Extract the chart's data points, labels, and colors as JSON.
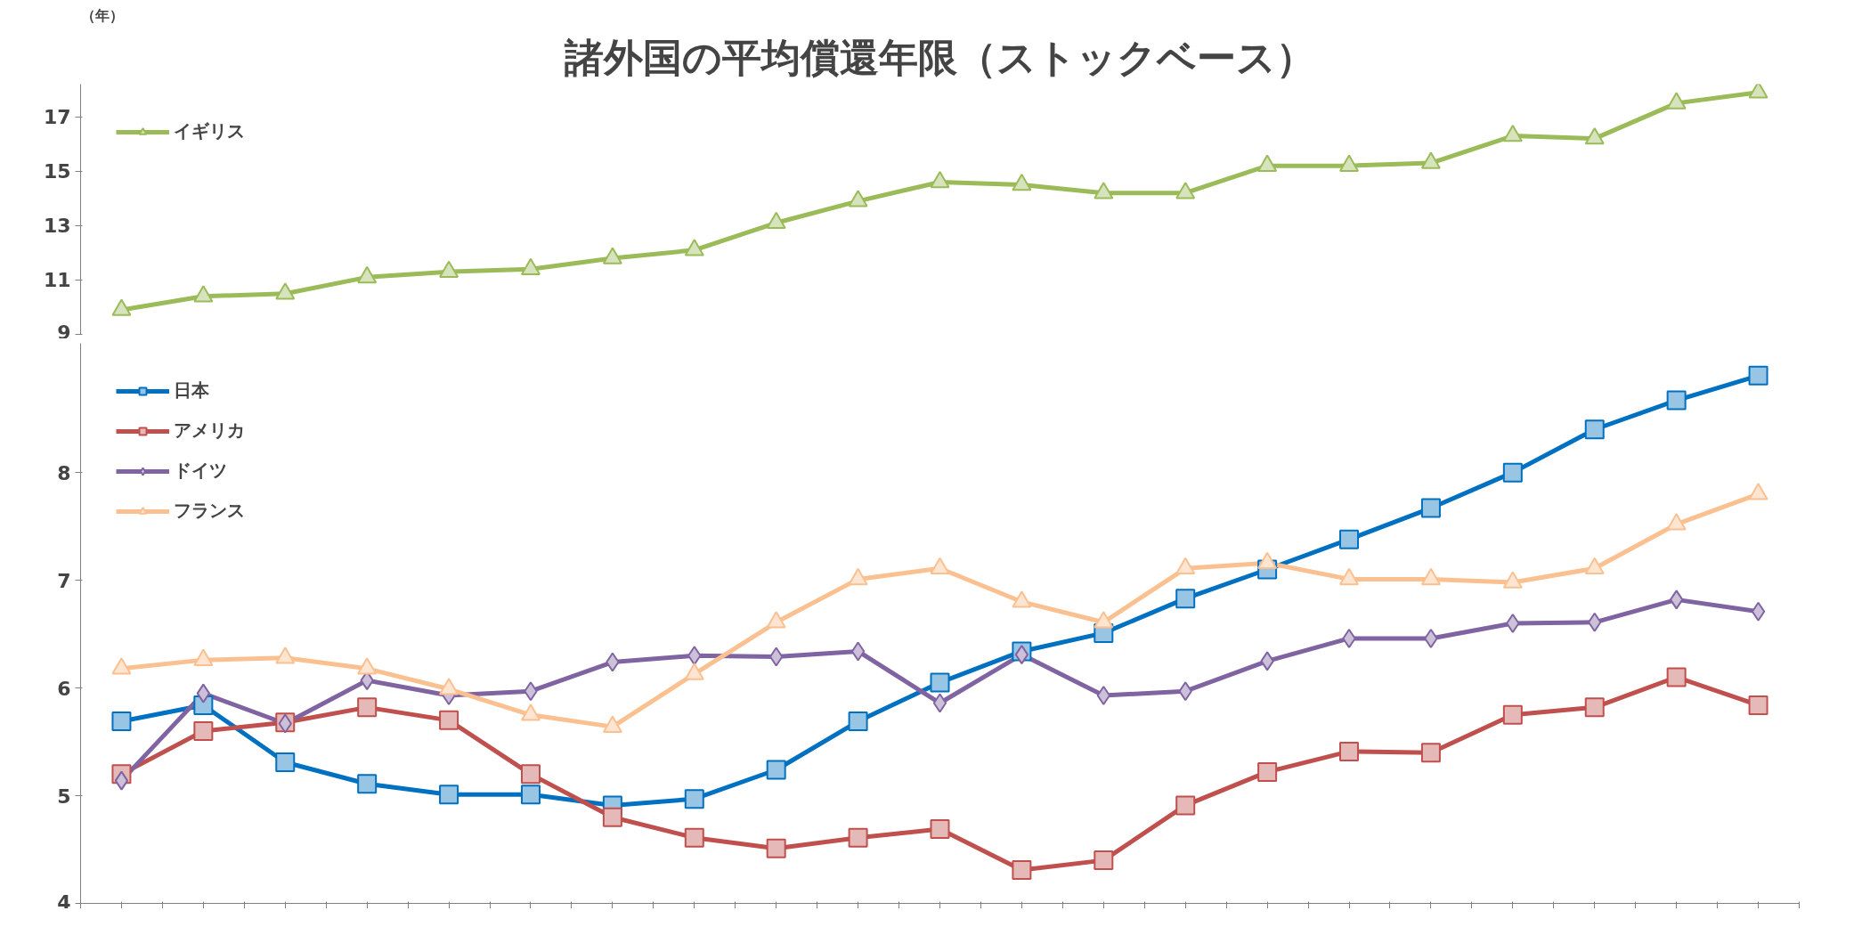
{
  "chart_data": [
    {
      "type": "line",
      "title": "諸外国の平均償還年限（ストックベース）",
      "ylabel": "（年）",
      "categories": [
        null,
        null,
        null,
        null,
        null,
        null,
        null,
        null,
        null,
        null,
        null,
        null,
        null,
        null,
        null,
        null,
        null,
        null,
        null,
        null,
        null
      ],
      "ylim": [
        9,
        18.2
      ],
      "yticks": [
        9,
        11,
        13,
        15,
        17
      ],
      "tick_labels": "y",
      "grid": false,
      "legend": "top left",
      "line_style": "solid",
      "series": [
        {
          "name": "イギリス",
          "color": "#9bbb59",
          "marker": "triangle",
          "values": [
            9.9,
            10.4,
            10.5,
            11.1,
            11.3,
            11.4,
            11.8,
            12.1,
            13.1,
            13.9,
            14.6,
            14.5,
            14.2,
            14.2,
            15.2,
            15.2,
            15.3,
            16.3,
            16.2,
            17.5,
            17.9
          ]
        }
      ]
    },
    {
      "type": "line",
      "categories": [
        null,
        null,
        null,
        null,
        null,
        null,
        null,
        null,
        null,
        null,
        null,
        null,
        null,
        null,
        null,
        null,
        null,
        null,
        null,
        null,
        null
      ],
      "ylim": [
        4,
        9.2
      ],
      "yticks": [
        4,
        5,
        6,
        7,
        8
      ],
      "tick_labels": "y",
      "grid": false,
      "legend": "top left",
      "line_style": "solid",
      "series": [
        {
          "name": "日本",
          "color": "#0070c0",
          "marker": "square",
          "values": [
            5.69,
            5.84,
            5.31,
            5.11,
            5.01,
            5.01,
            4.91,
            4.97,
            5.24,
            5.69,
            6.05,
            6.34,
            6.51,
            6.83,
            7.1,
            7.38,
            7.67,
            8.0,
            8.4,
            8.67,
            8.9
          ]
        },
        {
          "name": "アメリカ",
          "color": "#c0504d",
          "marker": "square",
          "values": [
            5.2,
            5.6,
            5.68,
            5.82,
            5.7,
            5.2,
            4.8,
            4.61,
            4.51,
            4.61,
            4.69,
            4.31,
            4.4,
            4.91,
            5.22,
            5.41,
            5.4,
            5.75,
            5.82,
            6.1,
            5.84
          ]
        },
        {
          "name": "ドイツ",
          "color": "#8064a2",
          "marker": "diamond",
          "values": [
            5.14,
            5.95,
            5.67,
            6.07,
            5.93,
            5.97,
            6.24,
            6.3,
            6.29,
            6.34,
            5.86,
            6.31,
            5.93,
            5.97,
            6.25,
            6.46,
            6.46,
            6.6,
            6.61,
            6.82,
            6.71
          ]
        },
        {
          "name": "フランス",
          "color": "#fac090",
          "marker": "triangle",
          "values": [
            6.18,
            6.26,
            6.28,
            6.18,
            5.99,
            5.75,
            5.64,
            6.13,
            6.61,
            7.01,
            7.11,
            6.8,
            6.61,
            7.11,
            7.16,
            7.01,
            7.01,
            6.98,
            7.11,
            7.52,
            7.8
          ]
        }
      ]
    }
  ]
}
